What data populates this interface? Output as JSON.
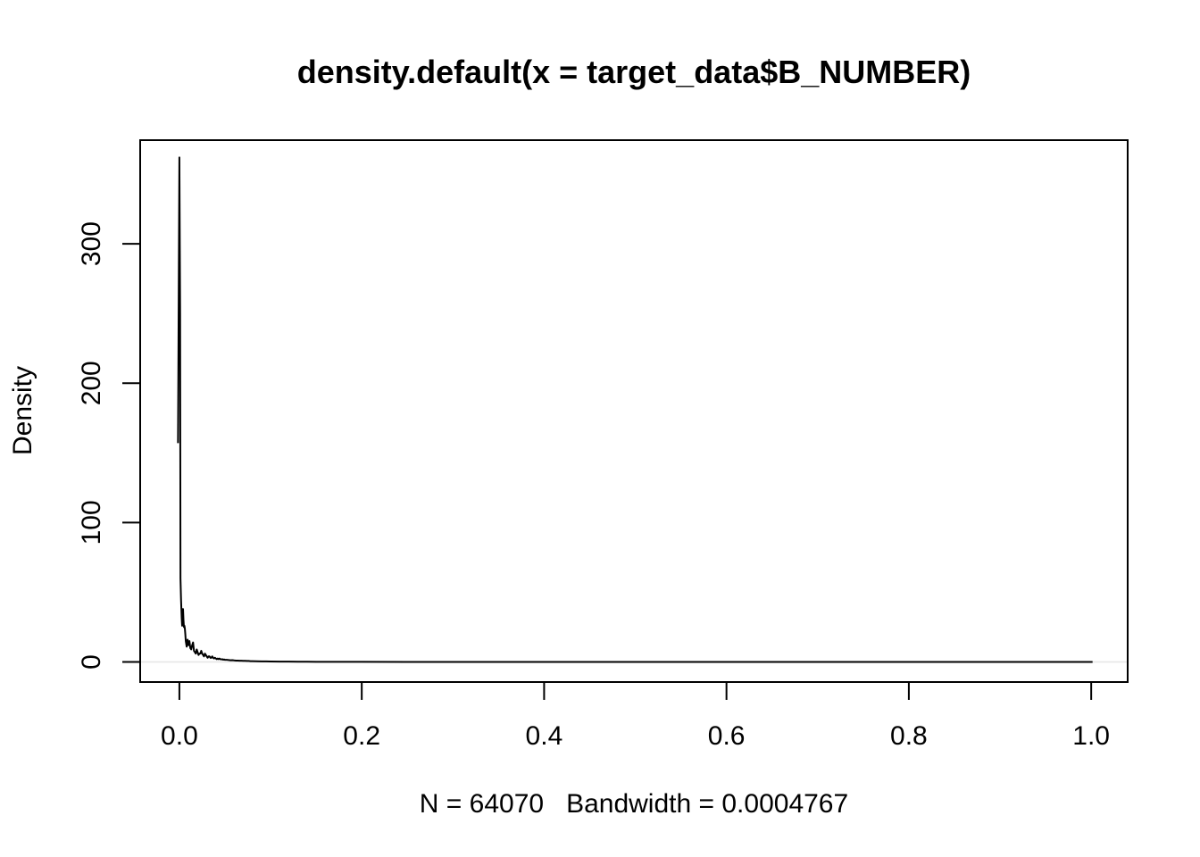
{
  "chart_data": {
    "type": "line",
    "title": "density.default(x = target_data$B_NUMBER)",
    "xlabel": "N = 64070   Bandwidth = 0.0004767",
    "ylabel": "Density",
    "xlim": [
      -0.043,
      1.04
    ],
    "ylim": [
      -14.4,
      374.4
    ],
    "x_ticks": [
      0.0,
      0.2,
      0.4,
      0.6,
      0.8,
      1.0
    ],
    "x_tick_labels": [
      "0.0",
      "0.2",
      "0.4",
      "0.6",
      "0.8",
      "1.0"
    ],
    "y_ticks": [
      0,
      100,
      200,
      300
    ],
    "y_tick_labels": [
      "0",
      "100",
      "200",
      "300"
    ],
    "grid": false,
    "legend": "none",
    "zero_line": true,
    "series": [
      {
        "x": [
          -0.0015,
          0.0,
          0.0008,
          0.0012,
          0.0018,
          0.0025,
          0.003,
          0.0035,
          0.004,
          0.0045,
          0.005,
          0.0055,
          0.006,
          0.0065,
          0.007,
          0.008,
          0.009,
          0.01,
          0.011,
          0.012,
          0.013,
          0.014,
          0.015,
          0.016,
          0.017,
          0.018,
          0.019,
          0.02,
          0.021,
          0.022,
          0.023,
          0.024,
          0.025,
          0.026,
          0.027,
          0.028,
          0.029,
          0.03,
          0.031,
          0.032,
          0.033,
          0.034,
          0.035,
          0.036,
          0.037,
          0.038,
          0.039,
          0.04,
          0.041,
          0.042,
          0.043,
          0.044,
          0.045,
          0.046,
          0.047,
          0.048,
          0.049,
          0.05,
          0.052,
          0.054,
          0.056,
          0.058,
          0.06,
          0.062,
          0.064,
          0.066,
          0.068,
          0.07,
          0.072,
          0.074,
          0.076,
          0.078,
          0.08,
          0.085,
          0.09,
          0.095,
          0.1,
          0.11,
          0.12,
          0.13,
          0.14,
          0.15,
          0.17,
          0.2,
          0.25,
          0.3,
          0.4,
          0.5,
          0.6,
          0.8,
          1.0,
          1.0015
        ],
        "y": [
          157,
          362,
          250,
          60,
          45,
          32,
          26,
          35,
          38,
          30,
          25,
          26,
          24,
          20,
          15,
          11,
          16,
          12,
          15,
          10,
          9,
          12,
          14,
          8,
          7,
          6,
          9,
          7,
          5,
          6,
          6,
          8,
          6,
          5,
          4,
          6,
          5,
          4,
          3,
          4,
          4,
          3,
          3,
          4,
          3,
          2.5,
          3,
          2.5,
          2,
          2.5,
          2,
          2.5,
          2,
          1.8,
          2,
          1.6,
          1.8,
          1.5,
          1.5,
          1.4,
          1.2,
          1.3,
          1.1,
          1.0,
          1.0,
          0.9,
          0.9,
          0.8,
          0.8,
          0.7,
          0.7,
          0.6,
          0.6,
          0.5,
          0.45,
          0.4,
          0.35,
          0.28,
          0.22,
          0.18,
          0.15,
          0.12,
          0.09,
          0.06,
          0.03,
          0.02,
          0.01,
          0.005,
          0.003,
          0.001,
          0.0005,
          0.0
        ]
      }
    ]
  }
}
